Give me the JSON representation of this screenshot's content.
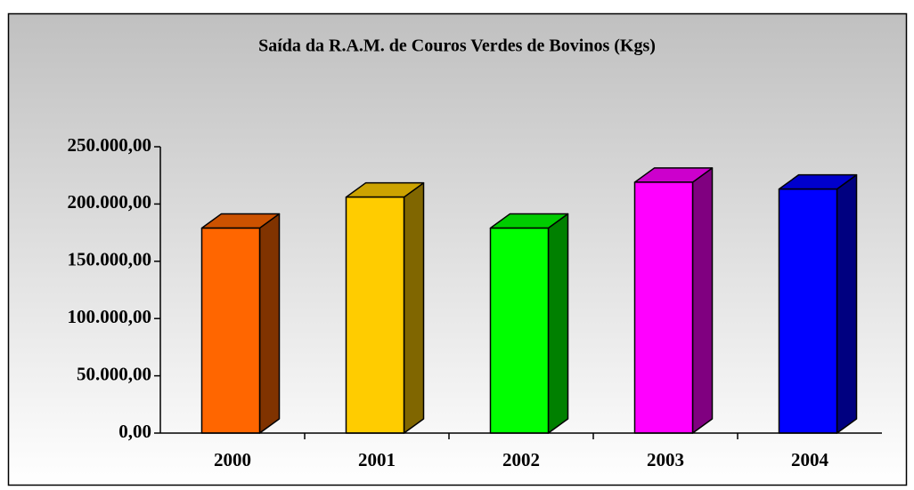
{
  "chart_data": {
    "type": "bar3d",
    "title": "Saída da R.A.M. de Couros Verdes de Bovinos (Kgs)",
    "categories": [
      "2000",
      "2001",
      "2002",
      "2003",
      "2004"
    ],
    "values": [
      179000,
      206000,
      179000,
      219000,
      213000
    ],
    "colors": [
      "#ff6600",
      "#ffcc00",
      "#00ff00",
      "#ff00ff",
      "#0000ff"
    ],
    "ylim": [
      0,
      250000
    ],
    "yticks": [
      {
        "value": 0,
        "label": "0,00"
      },
      {
        "value": 50000,
        "label": "50.000,00"
      },
      {
        "value": 100000,
        "label": "100.000,00"
      },
      {
        "value": 150000,
        "label": "150.000,00"
      },
      {
        "value": 200000,
        "label": "200.000,00"
      },
      {
        "value": 250000,
        "label": "250.000,00"
      }
    ]
  }
}
